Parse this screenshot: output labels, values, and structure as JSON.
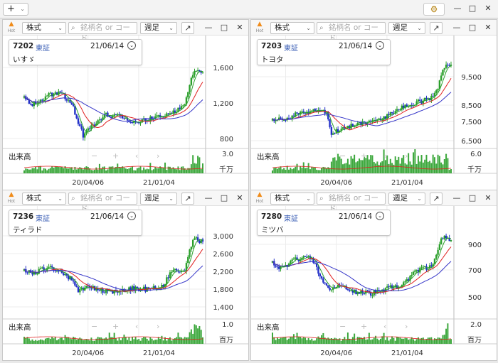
{
  "toolbar": {
    "add_label": "+",
    "chevron": "⌄",
    "settings_glyph": "⚙"
  },
  "window": {
    "minimize": "—",
    "maximize": "□",
    "close": "✕"
  },
  "common": {
    "hot_label": "Hot",
    "type_label": "株式",
    "search_placeholder": "銘柄名 or コード",
    "period_label": "週足",
    "expand_glyph": "↗",
    "volume_label": "出来高",
    "nav_minus": "−",
    "nav_plus": "+",
    "nav_left": "‹",
    "nav_right": "›",
    "x_ticks": [
      "20/04/06",
      "21/01/04"
    ]
  },
  "colors": {
    "up": "#2b9f2b",
    "down": "#2230c8",
    "ma_short": "#e02020",
    "ma_long": "#3535c8",
    "ma_mid": "#2aa02a"
  },
  "panels": [
    {
      "code": "7202",
      "market": "東証",
      "date": "21/06/14",
      "name": "いすゞ",
      "price_ticks": [
        "1,600",
        "1,200",
        "800"
      ],
      "volume_max": "3.0",
      "volume_unit": "千万"
    },
    {
      "code": "7203",
      "market": "東証",
      "date": "21/06/14",
      "name": "トヨタ",
      "price_ticks": [
        "9,500",
        "8,500",
        "7,500",
        "6,500"
      ],
      "volume_max": "6.0",
      "volume_unit": "千万"
    },
    {
      "code": "7236",
      "market": "東証",
      "date": "21/06/14",
      "name": "ティラド",
      "price_ticks": [
        "3,000",
        "2,600",
        "2,200",
        "1,800",
        "1,400"
      ],
      "volume_max": "1.0",
      "volume_unit": "百万"
    },
    {
      "code": "7280",
      "market": "東証",
      "date": "21/06/14",
      "name": "ミツバ",
      "price_ticks": [
        "900",
        "700",
        "500"
      ],
      "volume_max": "2.0",
      "volume_unit": "百万"
    }
  ]
}
